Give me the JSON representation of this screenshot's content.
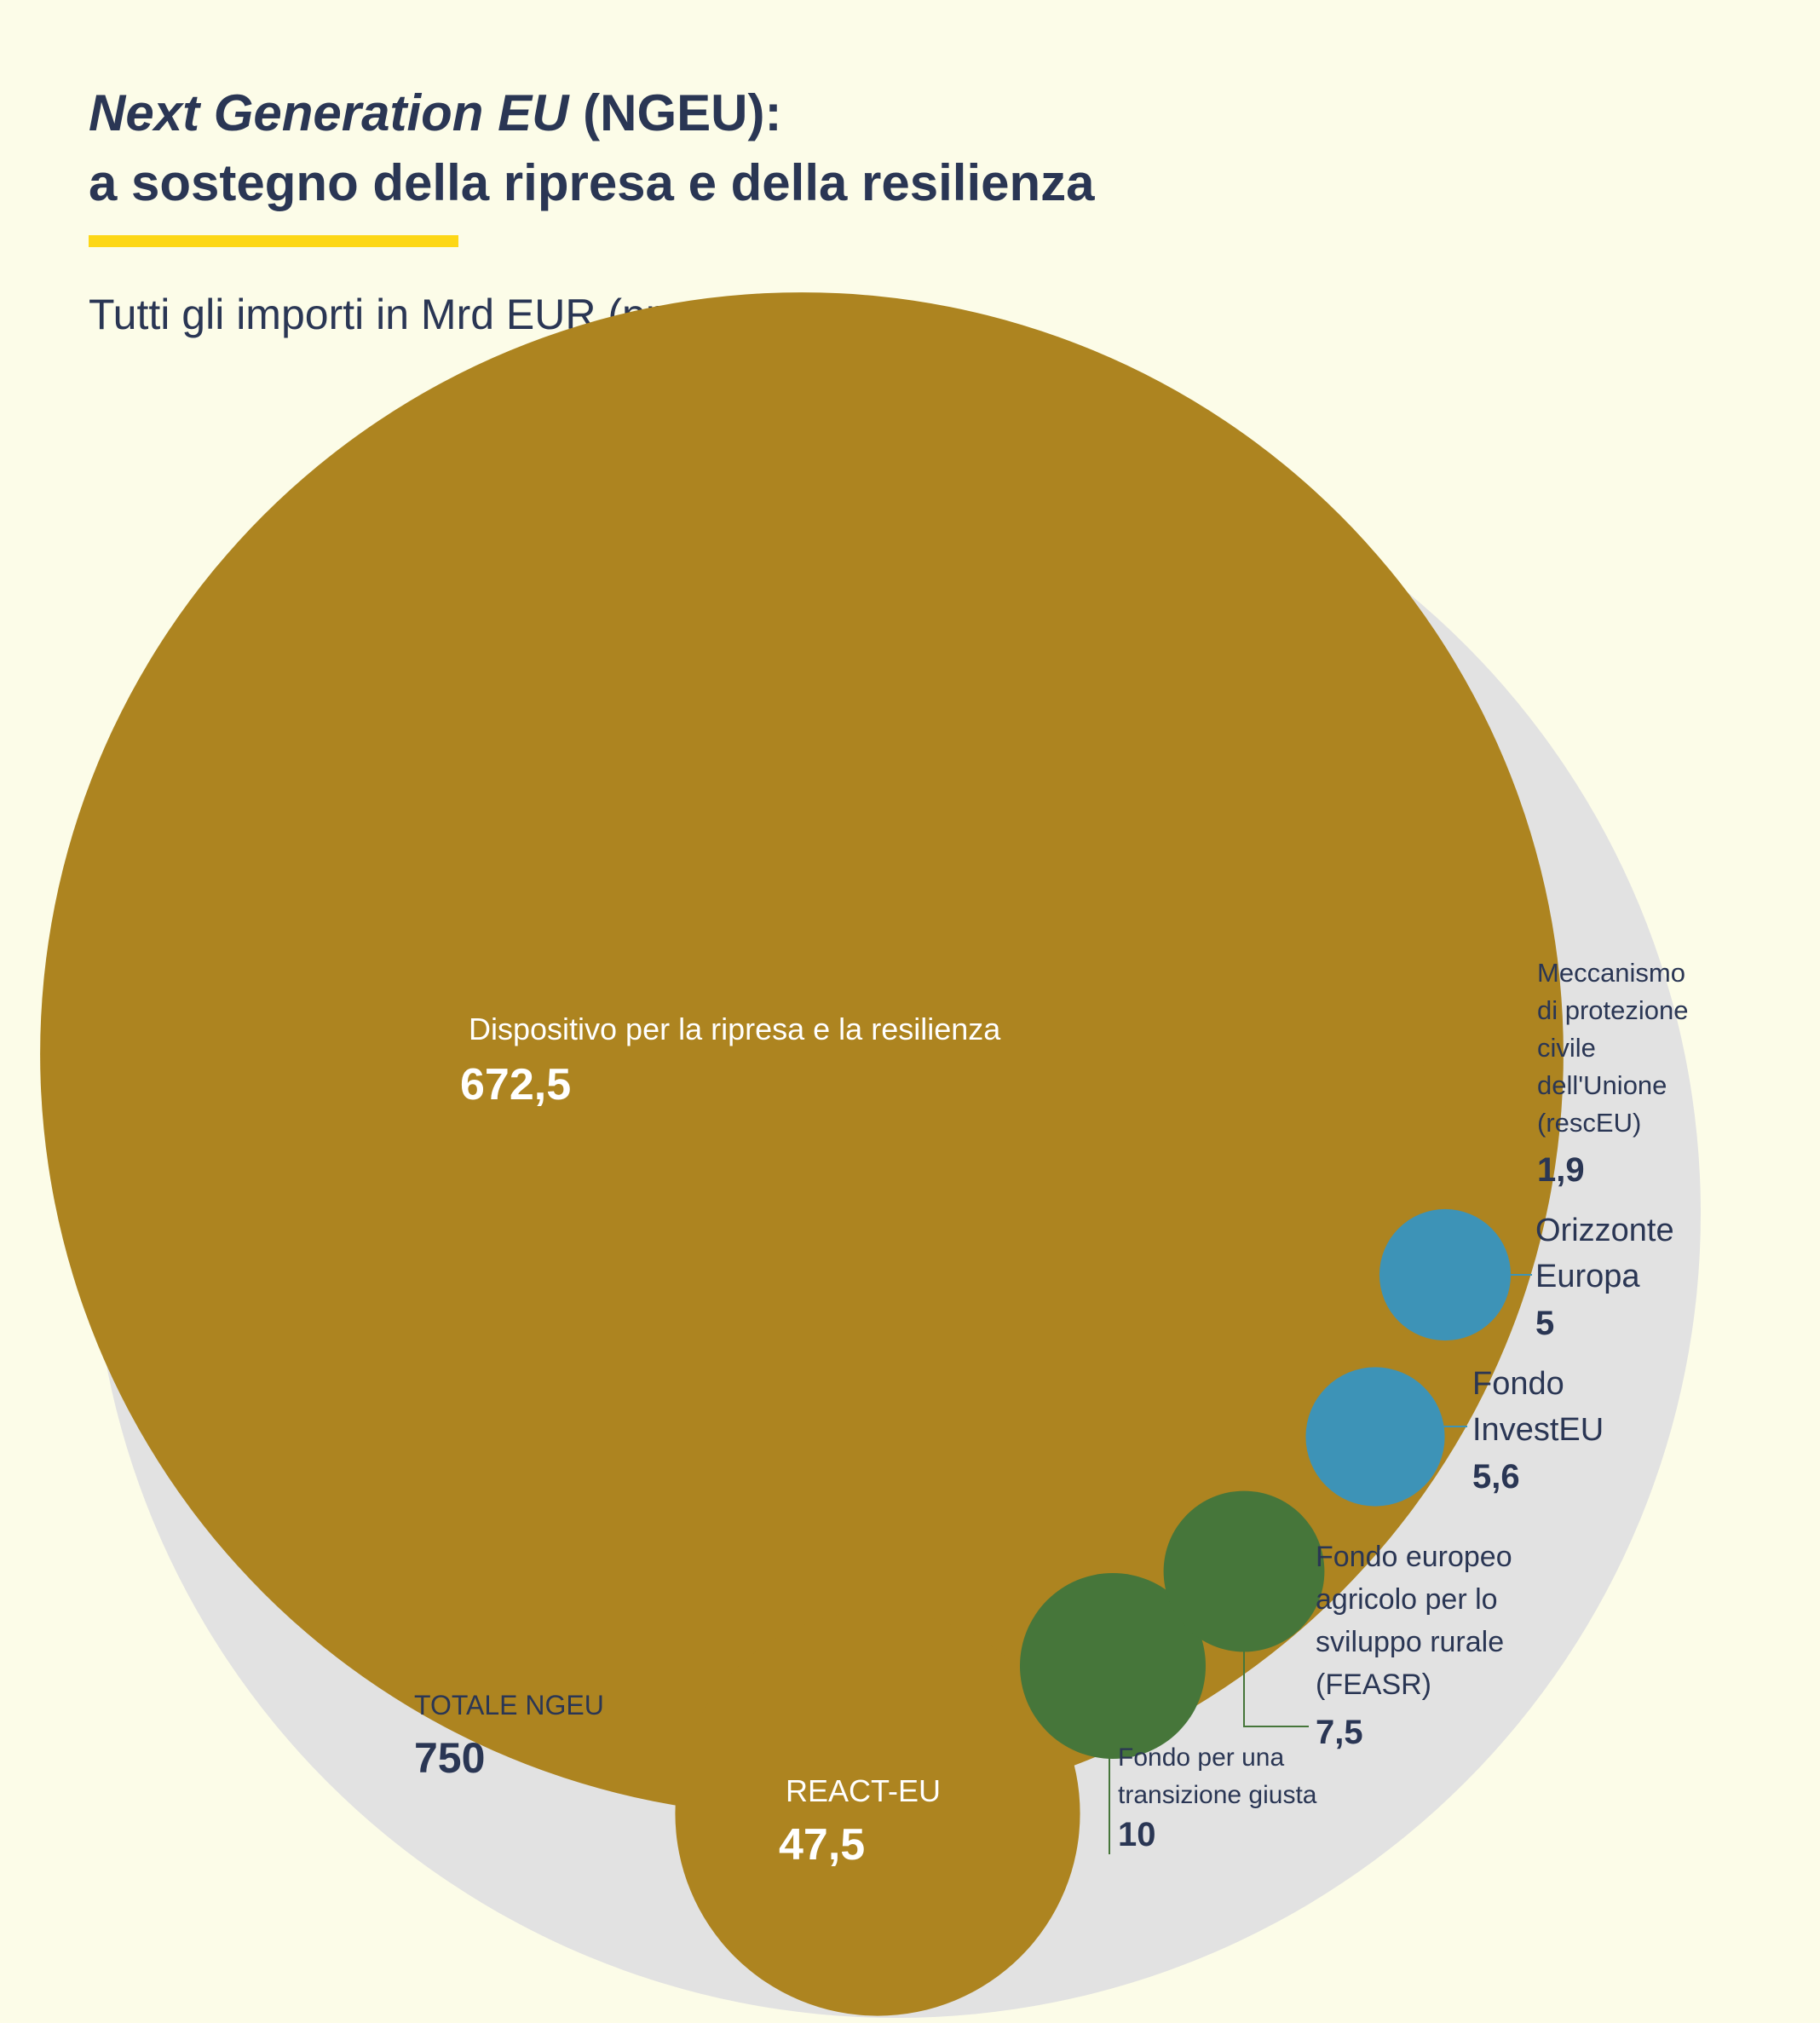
{
  "title": {
    "italic_part": "Next Generation EU",
    "rest_line1": " (NGEU):",
    "line2": "a sostegno della ripresa e della resilienza"
  },
  "subtitle": "Tutti gli importi in Mrd EUR (prezzi 2018)",
  "colors": {
    "background": "#fcfce8",
    "title_text": "#2a3654",
    "accent_rule": "#fdd716",
    "total_circle": "#e2e2e2",
    "ochre": "#ad8420",
    "blue": "#3d93b7",
    "green": "#46763a",
    "dark_text": "#2a3654"
  },
  "chart_data": {
    "type": "bubble",
    "unit": "Mrd EUR (prezzi 2018)",
    "total": {
      "label": "TOTALE NGEU",
      "value": 750,
      "value_label": "750"
    },
    "items": [
      {
        "id": "rrf",
        "label": "Dispositivo per la ripresa e la resilienza",
        "label_lines": [
          "Dispositivo per la ripresa e la resilienza"
        ],
        "value": 672.5,
        "value_label": "672,5",
        "color": "ochre"
      },
      {
        "id": "react",
        "label": "REACT-EU",
        "label_lines": [
          "REACT-EU"
        ],
        "value": 47.5,
        "value_label": "47,5",
        "color": "ochre"
      },
      {
        "id": "jtf",
        "label": "Fondo per una transizione giusta",
        "label_lines": [
          "Fondo per una",
          "transizione giusta"
        ],
        "value": 10,
        "value_label": "10",
        "color": "green"
      },
      {
        "id": "feasr",
        "label": "Fondo europeo agricolo per lo sviluppo rurale (FEASR)",
        "label_lines": [
          "Fondo europeo",
          "agricolo per lo",
          "sviluppo rurale",
          "(FEASR)"
        ],
        "value": 7.5,
        "value_label": "7,5",
        "color": "green"
      },
      {
        "id": "investeu",
        "label": "Fondo InvestEU",
        "label_lines": [
          "Fondo",
          "InvestEU"
        ],
        "value": 5.6,
        "value_label": "5,6",
        "color": "blue"
      },
      {
        "id": "horizon",
        "label": "Orizzonte Europa",
        "label_lines": [
          "Orizzonte",
          "Europa"
        ],
        "value": 5,
        "value_label": "5",
        "color": "blue"
      },
      {
        "id": "resceu",
        "label": "Meccanismo di protezione civile dell'Unione (rescEU)",
        "label_lines": [
          "Meccanismo",
          "di protezione",
          "civile",
          "dell'Unione",
          "(rescEU)"
        ],
        "value": 1.9,
        "value_label": "1,9",
        "color": "ochre"
      }
    ]
  }
}
